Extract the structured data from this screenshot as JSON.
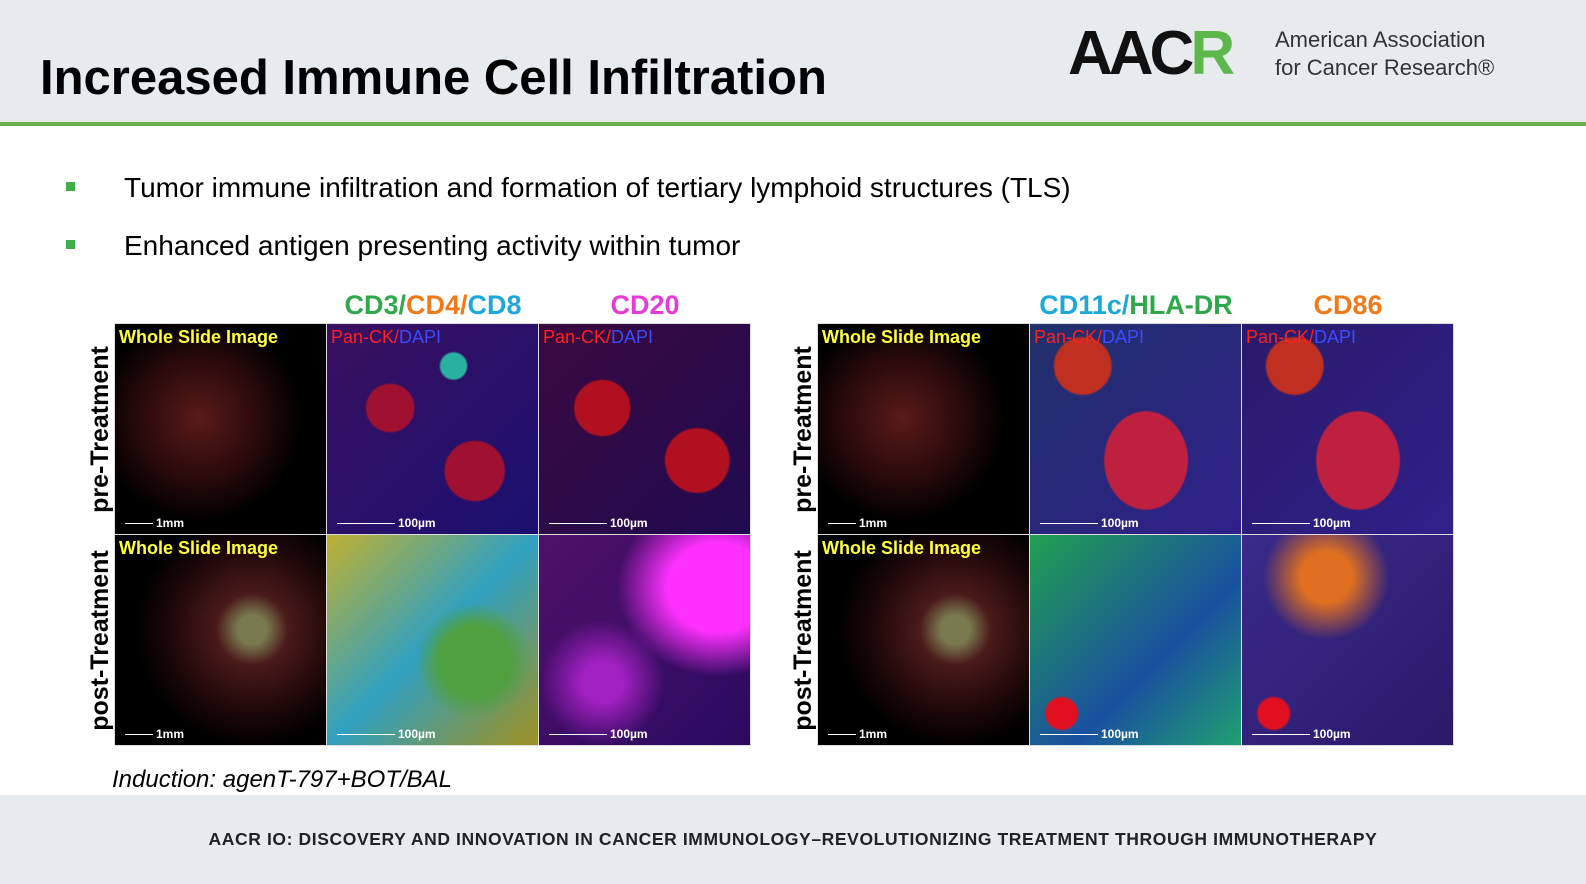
{
  "header": {
    "title": "Increased Immune Cell Infiltration",
    "logo": {
      "mark": [
        {
          "text": "AAC",
          "color": "#111111"
        },
        {
          "text": "R",
          "color": "#5cb84a"
        }
      ],
      "name_lines": [
        "American Association",
        "for Cancer Research®"
      ]
    }
  },
  "bullets": [
    "Tumor immune infiltration and formation of tertiary lymphoid structures (TLS)",
    "Enhanced antigen presenting activity within tumor"
  ],
  "figures": [
    {
      "headers": [
        [
          {
            "text": "CD3/",
            "color": "#2ea84a"
          },
          {
            "text": "CD4/",
            "color": "#f07a1a"
          },
          {
            "text": "CD8",
            "color": "#1da8dc"
          }
        ],
        [
          {
            "text": "CD20",
            "color": "#e83ad8"
          }
        ]
      ],
      "rows": [
        {
          "label": "pre-Treatment",
          "cells": [
            {
              "overlay": [
                {
                  "text": "Whole Slide Image",
                  "color": "#ffff3c"
                }
              ],
              "scale": "1mm"
            },
            {
              "overlay": [
                {
                  "text": "Pan-CK/",
                  "color": "#ff2020"
                },
                {
                  "text": "DAPI",
                  "color": "#3a4cff"
                }
              ],
              "scale": "100µm"
            },
            {
              "overlay": [
                {
                  "text": "Pan-CK/",
                  "color": "#ff2020"
                },
                {
                  "text": "DAPI",
                  "color": "#3a4cff"
                }
              ],
              "scale": "100µm"
            }
          ]
        },
        {
          "label": "post-Treatment",
          "cells": [
            {
              "overlay": [
                {
                  "text": "Whole Slide Image",
                  "color": "#ffff3c"
                }
              ],
              "scale": "1mm"
            },
            {
              "scale": "100µm"
            },
            {
              "scale": "100µm"
            }
          ]
        }
      ]
    },
    {
      "headers": [
        [
          {
            "text": "CD11c/",
            "color": "#1da8dc"
          },
          {
            "text": "HLA-DR",
            "color": "#2ea84a"
          }
        ],
        [
          {
            "text": "CD86",
            "color": "#f07a1a"
          }
        ]
      ],
      "rows": [
        {
          "label": "pre-Treatment",
          "cells": [
            {
              "overlay": [
                {
                  "text": "Whole Slide Image",
                  "color": "#ffff3c"
                }
              ],
              "scale": "1mm"
            },
            {
              "overlay": [
                {
                  "text": "Pan-CK/",
                  "color": "#ff2020"
                },
                {
                  "text": "DAPI",
                  "color": "#3a4cff"
                }
              ],
              "scale": "100µm"
            },
            {
              "overlay": [
                {
                  "text": "Pan-CK/",
                  "color": "#ff2020"
                },
                {
                  "text": "DAPI",
                  "color": "#3a4cff"
                }
              ],
              "scale": "100µm"
            }
          ]
        },
        {
          "label": "post-Treatment",
          "cells": [
            {
              "overlay": [
                {
                  "text": "Whole Slide Image",
                  "color": "#ffff3c"
                }
              ],
              "scale": "1mm"
            },
            {
              "scale": "100µm"
            },
            {
              "scale": "100µm"
            }
          ]
        }
      ]
    }
  ],
  "induction": "Induction: agenT-797+BOT/BAL",
  "footer": "AACR IO: DISCOVERY AND INNOVATION IN CANCER IMMUNOLOGY–REVOLUTIONIZING TREATMENT THROUGH IMMUNOTHERAPY"
}
